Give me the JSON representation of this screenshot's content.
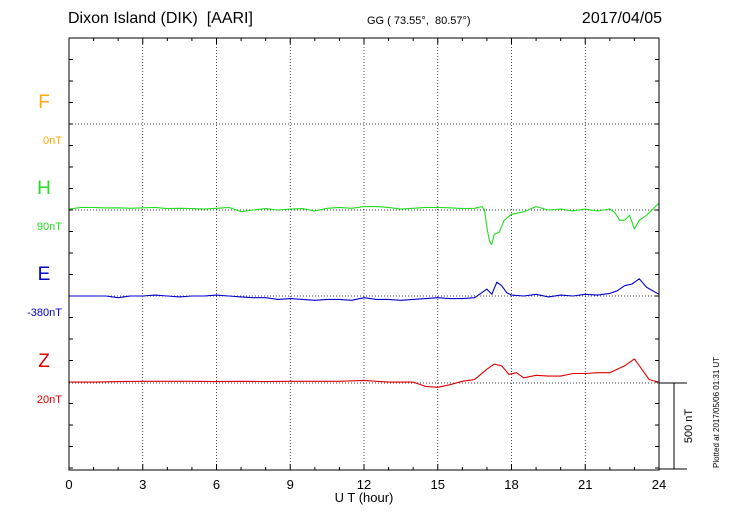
{
  "header": {
    "station": "Dixon Island (DIK)  [AARI]",
    "coords": "GG ( 73.55°,  80.57°)",
    "date": "2017/04/05"
  },
  "plotted_note": "Plotted at 2017/05/06 01:31  UT",
  "scale_bar_label": "500 nT",
  "colors": {
    "F": "#ffaa00",
    "H": "#22dd22",
    "E": "#0000cc",
    "Z": "#dd0000"
  },
  "chart_data": {
    "type": "line",
    "xlabel": "U T (hour)",
    "xlim": [
      0,
      24
    ],
    "x_ticks": [
      "0",
      "3",
      "6",
      "9",
      "12",
      "15",
      "18",
      "21",
      "24"
    ],
    "grid": true,
    "scale_bar_nT": 500,
    "units": "nT",
    "series": [
      {
        "name": "F",
        "baseline_label": "0nT",
        "color": "#ffaa00",
        "x": [],
        "y": []
      },
      {
        "name": "H",
        "baseline_label": "90nT",
        "color": "#22dd22",
        "x": [
          0,
          0.5,
          1,
          1.5,
          2,
          2.5,
          3,
          3.5,
          4,
          4.5,
          5,
          5.5,
          6,
          6.5,
          7,
          7.5,
          8,
          8.5,
          9,
          9.5,
          10,
          10.5,
          11,
          11.5,
          12,
          12.5,
          13,
          13.5,
          14,
          14.5,
          15,
          15.5,
          16,
          16.5,
          16.8,
          16.9,
          17,
          17.1,
          17.2,
          17.3,
          17.5,
          17.7,
          18,
          18.5,
          19,
          19.5,
          20,
          20.5,
          21,
          21.5,
          22,
          22.2,
          22.4,
          22.6,
          22.8,
          23,
          23.2,
          23.5,
          24
        ],
        "y": [
          5,
          15,
          15,
          12,
          13,
          10,
          13,
          15,
          8,
          10,
          8,
          5,
          10,
          15,
          -10,
          0,
          8,
          0,
          5,
          8,
          -5,
          10,
          15,
          10,
          20,
          20,
          15,
          5,
          10,
          15,
          15,
          13,
          8,
          10,
          20,
          0,
          -100,
          -180,
          -200,
          -140,
          -130,
          -60,
          -25,
          -10,
          20,
          0,
          5,
          -5,
          5,
          -5,
          5,
          -15,
          -60,
          -60,
          -30,
          -110,
          -60,
          -30,
          40
        ]
      },
      {
        "name": "E",
        "baseline_label": "-380nT",
        "color": "#0000cc",
        "x": [
          0,
          0.5,
          1,
          1.5,
          2,
          2.5,
          3,
          3.5,
          4,
          4.5,
          5,
          5.5,
          6,
          6.5,
          7,
          7.5,
          8,
          8.5,
          9,
          9.5,
          10,
          10.5,
          11,
          11.5,
          12,
          12.5,
          13,
          13.5,
          14,
          14.5,
          15,
          15.5,
          16,
          16.5,
          16.8,
          17,
          17.2,
          17.4,
          17.6,
          17.8,
          18,
          18.5,
          19,
          19.5,
          20,
          20.5,
          21,
          21.5,
          22,
          22.3,
          22.6,
          22.9,
          23.2,
          23.5,
          24
        ],
        "y": [
          0,
          0,
          0,
          0,
          -10,
          0,
          0,
          5,
          0,
          -5,
          0,
          0,
          5,
          0,
          -5,
          -10,
          -10,
          -20,
          -15,
          -20,
          -25,
          -20,
          -20,
          -25,
          -10,
          -20,
          -20,
          -25,
          -20,
          -15,
          -10,
          -15,
          -15,
          -10,
          20,
          40,
          10,
          80,
          60,
          20,
          5,
          0,
          10,
          -5,
          5,
          0,
          10,
          5,
          15,
          30,
          60,
          70,
          100,
          50,
          10
        ]
      },
      {
        "name": "Z",
        "baseline_label": "20nT",
        "color": "#dd0000",
        "x": [
          0,
          1,
          2,
          3,
          4,
          5,
          6,
          7,
          8,
          9,
          10,
          11,
          12,
          13,
          14,
          14.5,
          15,
          15.5,
          16,
          16.5,
          17,
          17.3,
          17.6,
          17.9,
          18.2,
          18.5,
          19,
          19.5,
          20,
          20.5,
          21,
          21.5,
          22,
          22.3,
          22.6,
          22.8,
          23,
          23.3,
          23.6,
          24
        ],
        "y": [
          5,
          5,
          8,
          10,
          10,
          10,
          8,
          10,
          8,
          10,
          10,
          10,
          15,
          5,
          5,
          -20,
          -25,
          -10,
          10,
          20,
          80,
          110,
          100,
          50,
          60,
          30,
          45,
          40,
          40,
          55,
          55,
          60,
          60,
          80,
          100,
          120,
          140,
          80,
          20,
          5
        ]
      }
    ]
  }
}
